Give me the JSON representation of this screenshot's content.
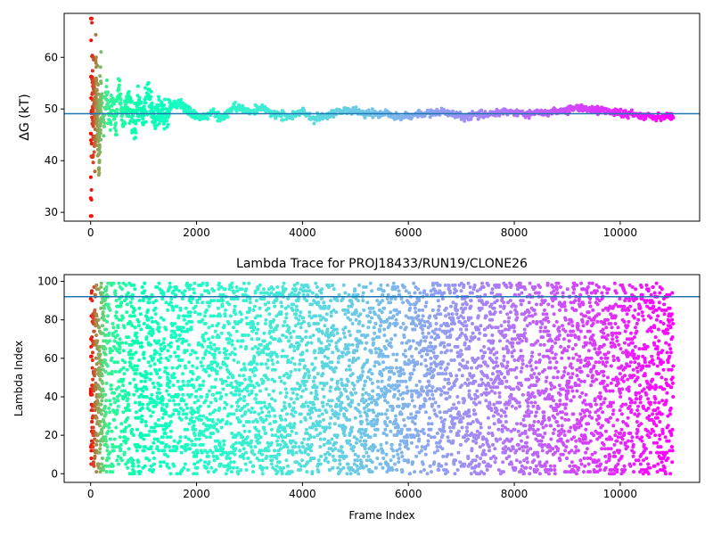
{
  "chart_data": [
    {
      "type": "scatter",
      "title": "",
      "xlabel": "",
      "ylabel": "ΔG (kT)",
      "xlim": [
        -500,
        11500
      ],
      "ylim": [
        28.3,
        68.5
      ],
      "xticks": [
        0,
        2000,
        4000,
        6000,
        8000,
        10000
      ],
      "xtick_labels": [
        "0",
        "2000",
        "4000",
        "6000",
        "8000",
        "10000"
      ],
      "yticks": [
        30,
        40,
        50,
        60
      ],
      "ytick_labels": [
        "30",
        "40",
        "50",
        "60"
      ],
      "hline": 49.1,
      "colormap": "rainbow (reversed: early frames red, late frames violet)",
      "marker_size": "small dots",
      "grid": false,
      "n_frames": 11000,
      "series": [
        {
          "trace": [
            [
              0,
              30.0
            ],
            [
              2,
              40.0
            ],
            [
              4,
              62.0
            ],
            [
              6,
              38.0
            ],
            [
              8,
              66.0
            ],
            [
              10,
              46.0
            ],
            [
              13,
              53.0
            ],
            [
              17,
              34.0
            ],
            [
              22,
              60.0
            ],
            [
              28,
              44.0
            ],
            [
              35,
              57.0
            ],
            [
              45,
              46.0
            ],
            [
              60,
              54.0
            ],
            [
              80,
              45.0
            ],
            [
              100,
              57.0
            ],
            [
              130,
              49.0
            ],
            [
              160,
              43.0
            ],
            [
              200,
              53.0
            ],
            [
              250,
              46.0
            ],
            [
              300,
              54.0
            ],
            [
              360,
              48.0
            ],
            [
              420,
              52.0
            ],
            [
              480,
              46.0
            ],
            [
              530,
              55.0
            ],
            [
              600,
              48.0
            ],
            [
              700,
              52.0
            ],
            [
              800,
              47.0
            ],
            [
              900,
              50.0
            ],
            [
              1000,
              49.0
            ],
            [
              1100,
              53.0
            ],
            [
              1200,
              47.0
            ],
            [
              1300,
              50.0
            ],
            [
              1400,
              48.5
            ],
            [
              1500,
              50.5
            ],
            [
              1700,
              51.0
            ],
            [
              1900,
              49.0
            ],
            [
              2100,
              48.5
            ],
            [
              2300,
              49.5
            ],
            [
              2500,
              48.0
            ],
            [
              2700,
              50.5
            ],
            [
              3000,
              49.5
            ],
            [
              3200,
              50.0
            ],
            [
              3500,
              49.0
            ],
            [
              3800,
              48.5
            ],
            [
              4000,
              49.5
            ],
            [
              4200,
              48.0
            ],
            [
              4500,
              49.0
            ],
            [
              4800,
              49.8
            ],
            [
              5000,
              49.5
            ],
            [
              5300,
              49.0
            ],
            [
              5600,
              49.2
            ],
            [
              5800,
              48.2
            ],
            [
              6000,
              48.8
            ],
            [
              6300,
              49.0
            ],
            [
              6600,
              49.5
            ],
            [
              6800,
              49.0
            ],
            [
              7000,
              48.5
            ],
            [
              7300,
              48.8
            ],
            [
              7600,
              49.2
            ],
            [
              7800,
              49.6
            ],
            [
              8000,
              49.3
            ],
            [
              8300,
              49.0
            ],
            [
              8600,
              49.4
            ],
            [
              8900,
              49.6
            ],
            [
              9200,
              50.2
            ],
            [
              9500,
              50.0
            ],
            [
              9800,
              49.5
            ],
            [
              10100,
              49.0
            ],
            [
              10400,
              48.8
            ],
            [
              10700,
              48.6
            ],
            [
              11000,
              48.5
            ]
          ]
        }
      ]
    },
    {
      "type": "scatter",
      "title": "Lambda Trace for PROJ18433/RUN19/CLONE26",
      "xlabel": "Frame Index",
      "ylabel": "Lambda Index",
      "xlim": [
        -500,
        11500
      ],
      "ylim": [
        -4.5,
        103.5
      ],
      "xticks": [
        0,
        2000,
        4000,
        6000,
        8000,
        10000
      ],
      "xtick_labels": [
        "0",
        "2000",
        "4000",
        "6000",
        "8000",
        "10000"
      ],
      "yticks": [
        0,
        20,
        40,
        60,
        80,
        100
      ],
      "ytick_labels": [
        "0",
        "20",
        "40",
        "60",
        "80",
        "100"
      ],
      "hline": 92,
      "colormap": "rainbow (reversed: early frames red, late frames violet)",
      "marker_size": "small dots",
      "grid": false,
      "lambda_range": [
        0,
        99
      ],
      "n_frames": 11000
    }
  ],
  "colors": {
    "hline": "#1f77b4",
    "axes": "#000000",
    "background": "#ffffff"
  }
}
